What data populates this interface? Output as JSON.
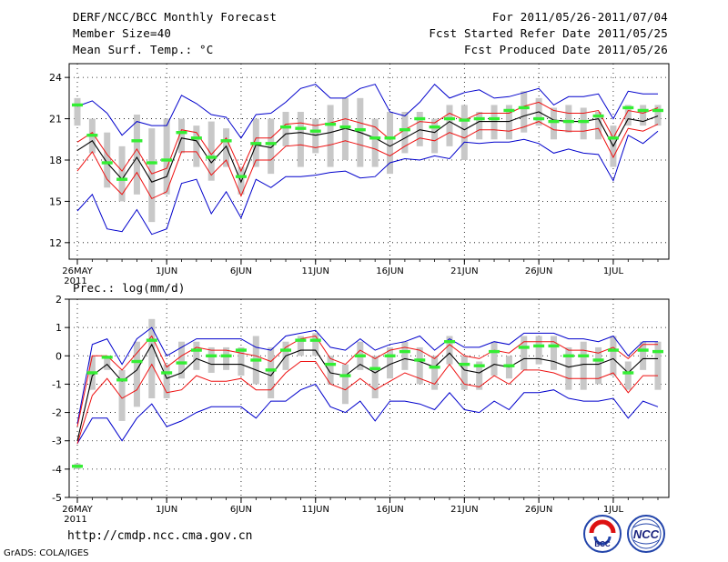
{
  "header": {
    "title": "DERF/NCC/BCC Monthly Forecast",
    "member_size": "Member Size=40",
    "variable": "Mean Surf. Temp.: °C",
    "forecast_period": "For 2011/05/26-2011/07/04",
    "started_refer": "Fcst Started Refer Date 2011/05/25",
    "produced": "Fcst Produced Date 2011/05/26"
  },
  "panel2_label": "Prec.: log(mm/d)",
  "footer": {
    "url": "http://cmdp.ncc.cma.gov.cn",
    "credit": "GrADS: COLA/IGES",
    "logo1_text": "BCC",
    "logo2_text": "NCC"
  },
  "colors": {
    "box": "#c8c8c8",
    "green": "#33ee33",
    "red": "#ee1111",
    "blue": "#0000cc",
    "black": "#000000"
  },
  "chart_data": [
    {
      "type": "box-ensemble",
      "title": "Mean Surf. Temp.: °C",
      "ylim": [
        10.8,
        25
      ],
      "yticks": [
        12,
        15,
        18,
        21,
        24
      ],
      "year_label": "2011",
      "xticks": [
        {
          "day": 0,
          "label": "26MAY"
        },
        {
          "day": 6,
          "label": "1JUN"
        },
        {
          "day": 11,
          "label": "6JUN"
        },
        {
          "day": 16,
          "label": "11JUN"
        },
        {
          "day": 21,
          "label": "16JUN"
        },
        {
          "day": 26,
          "label": "21JUN"
        },
        {
          "day": 31,
          "label": "26JUN"
        },
        {
          "day": 36,
          "label": "1JUL"
        }
      ],
      "series": {
        "mean": [
          18.7,
          19.4,
          17.8,
          16.6,
          18.2,
          16.4,
          16.8,
          19.6,
          19.4,
          17.8,
          19.0,
          16.4,
          19.1,
          18.9,
          19.9,
          20.0,
          19.8,
          20.0,
          20.3,
          20.0,
          19.6,
          19.0,
          19.6,
          20.2,
          20.0,
          20.8,
          20.2,
          20.8,
          20.8,
          20.8,
          21.2,
          21.5,
          20.9,
          20.8,
          20.8,
          21.0,
          19.0,
          21.0,
          20.8,
          21.2
        ],
        "ensemble_first": [
          22.0,
          19.8,
          17.8,
          16.6,
          19.4,
          17.8,
          18.0,
          20.0,
          19.6,
          18.2,
          19.4,
          16.8,
          19.2,
          19.2,
          20.4,
          20.3,
          20.1,
          20.6,
          20.4,
          20.2,
          19.6,
          19.6,
          20.2,
          21.0,
          20.4,
          21.0,
          20.9,
          21.0,
          21.0,
          21.6,
          21.8,
          21.0,
          20.8,
          20.8,
          20.8,
          21.2,
          19.6,
          21.8,
          21.6,
          21.6
        ],
        "upper": [
          19.3,
          20.0,
          18.4,
          17.2,
          18.8,
          17.0,
          17.4,
          20.2,
          20.0,
          18.4,
          19.6,
          17.2,
          19.6,
          19.6,
          20.6,
          20.7,
          20.5,
          20.7,
          21.0,
          20.7,
          20.4,
          19.5,
          20.2,
          20.8,
          20.7,
          21.4,
          20.9,
          21.4,
          21.4,
          21.4,
          21.9,
          22.2,
          21.6,
          21.4,
          21.4,
          21.6,
          19.6,
          21.6,
          21.4,
          21.8
        ],
        "lower": [
          17.2,
          18.6,
          16.6,
          15.5,
          17.1,
          15.2,
          15.7,
          18.6,
          18.6,
          16.9,
          18.0,
          15.4,
          18.0,
          18.0,
          19.0,
          19.1,
          18.9,
          19.1,
          19.4,
          19.1,
          18.8,
          18.3,
          19.0,
          19.6,
          19.4,
          20.0,
          19.6,
          20.2,
          20.2,
          20.1,
          20.4,
          20.8,
          20.2,
          20.1,
          20.1,
          20.3,
          18.2,
          20.3,
          20.1,
          20.6
        ],
        "max": [
          21.9,
          22.3,
          21.4,
          19.8,
          20.8,
          20.5,
          20.5,
          22.7,
          22.1,
          21.3,
          21.1,
          19.6,
          21.3,
          21.4,
          22.2,
          23.2,
          23.5,
          22.5,
          22.5,
          23.2,
          23.5,
          21.5,
          21.2,
          22.2,
          23.5,
          22.5,
          22.9,
          23.1,
          22.5,
          22.6,
          22.9,
          23.2,
          22.0,
          22.6,
          22.6,
          22.8,
          21.0,
          23.0,
          22.8,
          22.8
        ],
        "min": [
          14.3,
          15.5,
          13.0,
          12.8,
          14.4,
          12.6,
          13.0,
          16.3,
          16.6,
          14.1,
          15.7,
          13.8,
          16.6,
          16.0,
          16.8,
          16.8,
          16.9,
          17.1,
          17.2,
          16.7,
          16.8,
          17.8,
          18.1,
          18.0,
          18.3,
          18.1,
          19.3,
          19.2,
          19.3,
          19.3,
          19.5,
          19.2,
          18.5,
          18.8,
          18.5,
          18.4,
          16.5,
          19.8,
          19.2,
          20.1
        ],
        "box_top": [
          22.5,
          21.0,
          20.0,
          19.0,
          21.3,
          20.3,
          21.0,
          21.0,
          20.5,
          20.8,
          20.3,
          17.5,
          21.0,
          21.0,
          21.5,
          21.5,
          21.0,
          22.0,
          22.5,
          22.5,
          21.0,
          21.5,
          21.5,
          21.5,
          21.0,
          22.0,
          22.0,
          21.5,
          22.0,
          22.0,
          23.0,
          22.5,
          21.8,
          22.0,
          21.8,
          21.5,
          20.5,
          22.0,
          22.0,
          22.0
        ],
        "box_bottom": [
          20.5,
          18.5,
          16.0,
          15.0,
          15.5,
          13.5,
          15.5,
          18.5,
          17.5,
          16.5,
          17.5,
          15.5,
          17.5,
          17.0,
          19.0,
          17.5,
          18.5,
          17.5,
          18.0,
          17.5,
          17.5,
          17.0,
          18.5,
          19.0,
          18.5,
          19.0,
          18.0,
          19.5,
          19.5,
          19.5,
          20.0,
          20.5,
          19.5,
          20.0,
          19.5,
          19.5,
          17.5,
          20.5,
          20.5,
          20.5
        ]
      }
    },
    {
      "type": "box-ensemble",
      "title": "Prec.: log(mm/d)",
      "ylim": [
        -5,
        2
      ],
      "yticks": [
        -5,
        -4,
        -3,
        -2,
        -1,
        0,
        1,
        2
      ],
      "year_label": "2011",
      "xticks": [
        {
          "day": 0,
          "label": "26MAY"
        },
        {
          "day": 6,
          "label": "1JUN"
        },
        {
          "day": 11,
          "label": "6JUN"
        },
        {
          "day": 16,
          "label": "11JUN"
        },
        {
          "day": 21,
          "label": "16JUN"
        },
        {
          "day": 26,
          "label": "21JUN"
        },
        {
          "day": 31,
          "label": "26JUN"
        },
        {
          "day": 36,
          "label": "1JUL"
        }
      ],
      "series": {
        "mean": [
          -3.0,
          -0.7,
          -0.3,
          -0.9,
          -0.5,
          0.4,
          -0.8,
          -0.6,
          -0.1,
          -0.3,
          -0.3,
          -0.3,
          -0.5,
          -0.7,
          0.0,
          0.2,
          0.2,
          -0.6,
          -0.7,
          -0.3,
          -0.6,
          -0.3,
          -0.1,
          -0.2,
          -0.4,
          0.1,
          -0.5,
          -0.6,
          -0.3,
          -0.4,
          -0.1,
          -0.1,
          -0.2,
          -0.4,
          -0.3,
          -0.3,
          -0.1,
          -0.6,
          -0.1,
          -0.1
        ],
        "ensemble_first": [
          -3.9,
          -0.6,
          -0.05,
          -0.85,
          -0.2,
          0.55,
          -0.6,
          -0.25,
          0.2,
          0.0,
          0.0,
          0.2,
          -0.15,
          -0.5,
          0.2,
          0.55,
          0.55,
          -0.3,
          -0.7,
          0.0,
          -0.45,
          0.0,
          0.15,
          -0.15,
          -0.4,
          0.5,
          -0.3,
          -0.35,
          0.15,
          -0.35,
          0.3,
          0.35,
          0.35,
          0.0,
          0.0,
          -0.15,
          0.2,
          -0.6,
          0.2,
          0.15
        ],
        "upper": [
          -2.5,
          0.0,
          0.0,
          -0.5,
          0.1,
          0.7,
          -0.4,
          0.0,
          0.3,
          0.2,
          0.2,
          0.1,
          0.0,
          -0.2,
          0.3,
          0.6,
          0.7,
          -0.1,
          -0.3,
          0.2,
          -0.1,
          0.2,
          0.3,
          0.2,
          -0.1,
          0.4,
          0.0,
          -0.1,
          0.2,
          0.1,
          0.5,
          0.5,
          0.5,
          0.2,
          0.2,
          0.1,
          0.3,
          -0.1,
          0.4,
          0.4
        ],
        "lower": [
          -3.1,
          -1.4,
          -0.8,
          -1.5,
          -1.2,
          -0.3,
          -1.3,
          -1.2,
          -0.7,
          -0.9,
          -0.9,
          -0.8,
          -1.2,
          -1.2,
          -0.6,
          -0.2,
          -0.2,
          -1.0,
          -1.2,
          -0.8,
          -1.2,
          -0.9,
          -0.6,
          -0.8,
          -1.0,
          -0.3,
          -1.0,
          -1.1,
          -0.7,
          -1.0,
          -0.5,
          -0.5,
          -0.6,
          -0.8,
          -0.8,
          -0.8,
          -0.6,
          -1.3,
          -0.7,
          -0.7
        ],
        "max": [
          -2.4,
          0.4,
          0.6,
          -0.3,
          0.6,
          1.0,
          0.0,
          0.3,
          0.6,
          0.6,
          0.6,
          0.6,
          0.3,
          0.2,
          0.7,
          0.8,
          0.9,
          0.3,
          0.2,
          0.6,
          0.2,
          0.4,
          0.5,
          0.7,
          0.2,
          0.6,
          0.3,
          0.3,
          0.5,
          0.4,
          0.8,
          0.8,
          0.8,
          0.6,
          0.6,
          0.5,
          0.7,
          0.0,
          0.5,
          0.5
        ],
        "min": [
          -3.1,
          -2.2,
          -2.2,
          -3.0,
          -2.2,
          -1.7,
          -2.5,
          -2.3,
          -2.0,
          -1.8,
          -1.8,
          -1.8,
          -2.2,
          -1.6,
          -1.6,
          -1.2,
          -1.0,
          -1.8,
          -2.0,
          -1.6,
          -2.3,
          -1.6,
          -1.6,
          -1.7,
          -1.9,
          -1.3,
          -1.9,
          -2.0,
          -1.6,
          -1.9,
          -1.3,
          -1.3,
          -1.2,
          -1.5,
          -1.6,
          -1.6,
          -1.5,
          -2.2,
          -1.6,
          -1.8
        ],
        "box_top": [
          -3.8,
          0.0,
          0.0,
          -0.5,
          0.5,
          1.3,
          -0.3,
          0.5,
          0.5,
          0.3,
          0.3,
          0.3,
          0.7,
          0.3,
          0.5,
          0.7,
          0.8,
          0.0,
          -0.3,
          0.5,
          0.0,
          0.3,
          0.5,
          0.3,
          0.0,
          0.7,
          0.0,
          -0.2,
          0.5,
          0.0,
          0.7,
          0.7,
          0.7,
          0.3,
          0.5,
          0.3,
          0.7,
          -0.2,
          0.5,
          0.5
        ],
        "box_bottom": [
          -4.0,
          -1.2,
          -0.5,
          -2.3,
          -1.8,
          -1.5,
          -1.5,
          -0.8,
          -0.5,
          -0.6,
          -0.5,
          -0.7,
          -1.0,
          -1.5,
          -0.5,
          0.0,
          0.0,
          -1.0,
          -1.7,
          -0.5,
          -1.5,
          -0.8,
          -0.5,
          -1.0,
          -1.2,
          -0.3,
          -1.2,
          -1.2,
          -0.7,
          -0.8,
          -0.5,
          -0.3,
          -0.5,
          -1.2,
          -1.2,
          -1.0,
          -0.7,
          -1.2,
          -0.5,
          -1.2
        ]
      }
    }
  ]
}
